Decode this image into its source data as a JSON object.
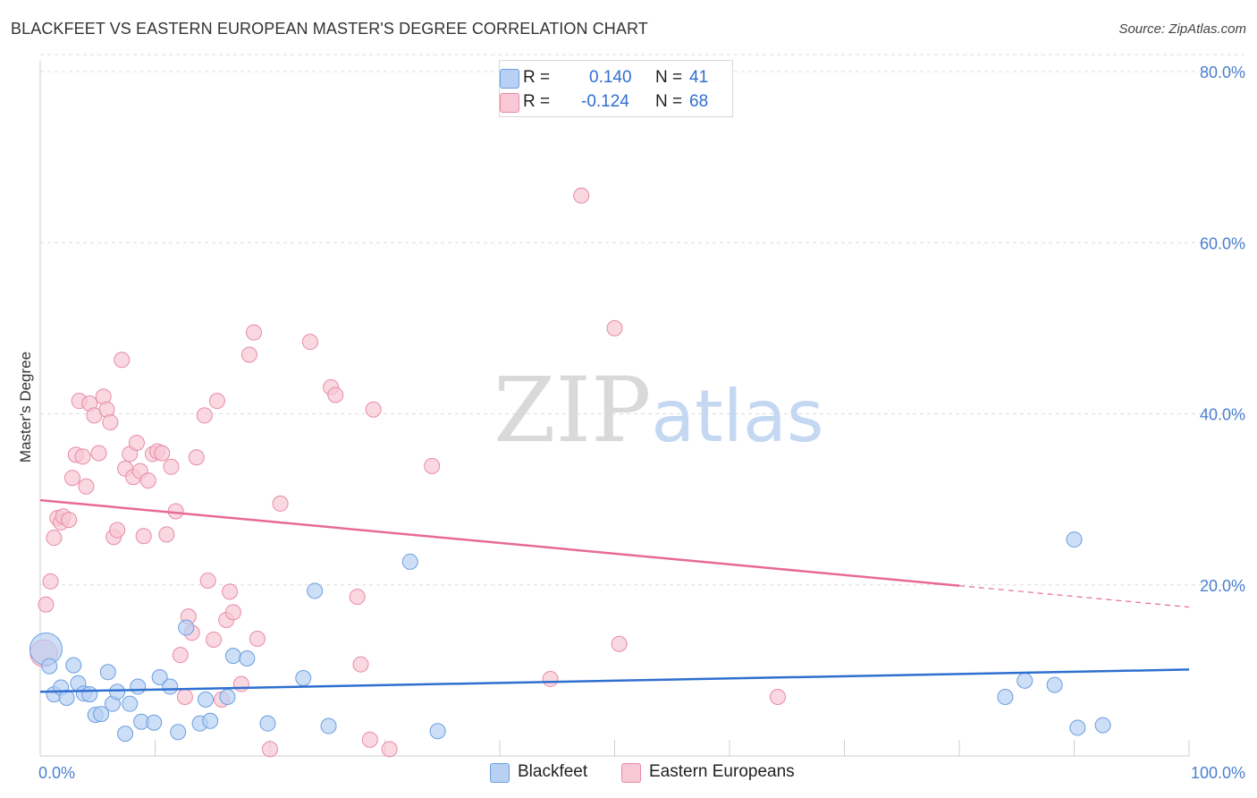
{
  "header": {
    "title": "BLACKFEET VS EASTERN EUROPEAN MASTER'S DEGREE CORRELATION CHART",
    "source": "Source: ZipAtlas.com"
  },
  "legend": {
    "r_label": "R =",
    "n_label": "N =",
    "rows": [
      {
        "name": "Blackfeet",
        "r": "0.140",
        "n": "41",
        "fill": "#b8d0f4",
        "stroke": "#6b9ee0"
      },
      {
        "name": "Eastern Europeans",
        "r": "-0.124",
        "n": "68",
        "fill": "#f8c8d6",
        "stroke": "#e88aa6"
      }
    ]
  },
  "watermark": {
    "zip": "ZIP",
    "atlas": "atlas"
  },
  "colors": {
    "blue_line": "#2f6fd0",
    "pink_line": "#e86a94",
    "tick_text": "#4a7fd0",
    "grid": "#dddddd"
  },
  "chart_data": {
    "type": "scatter",
    "title": "BLACKFEET VS EASTERN EUROPEAN MASTER'S DEGREE CORRELATION CHART",
    "xlabel": "",
    "ylabel": "Master's Degree",
    "xlim": [
      0,
      100
    ],
    "ylim": [
      0,
      80
    ],
    "x_tick_labels": [
      "0.0%",
      "100.0%"
    ],
    "y_ticks": [
      20,
      40,
      60,
      80
    ],
    "y_tick_labels": [
      "20.0%",
      "40.0%",
      "60.0%",
      "80.0%"
    ],
    "grid": true,
    "series": [
      {
        "name": "Blackfeet",
        "color": "#6b9ee0",
        "fill": "#b8d0f4",
        "trend": {
          "x": [
            0,
            100
          ],
          "y": [
            7.5,
            10.1
          ]
        },
        "points": [
          [
            0.5,
            12.5
          ],
          [
            0.8,
            10.5
          ],
          [
            1.2,
            7.2
          ],
          [
            1.8,
            8.0
          ],
          [
            2.3,
            6.8
          ],
          [
            2.9,
            10.6
          ],
          [
            3.3,
            8.5
          ],
          [
            3.8,
            7.3
          ],
          [
            4.3,
            7.2
          ],
          [
            4.8,
            4.8
          ],
          [
            5.3,
            4.9
          ],
          [
            5.9,
            9.8
          ],
          [
            6.3,
            6.1
          ],
          [
            6.7,
            7.5
          ],
          [
            7.4,
            2.6
          ],
          [
            7.8,
            6.1
          ],
          [
            8.5,
            8.1
          ],
          [
            8.8,
            4.0
          ],
          [
            9.9,
            3.9
          ],
          [
            10.4,
            9.2
          ],
          [
            11.3,
            8.1
          ],
          [
            12.0,
            2.8
          ],
          [
            12.7,
            15.0
          ],
          [
            13.9,
            3.8
          ],
          [
            14.4,
            6.6
          ],
          [
            14.8,
            4.1
          ],
          [
            16.3,
            6.9
          ],
          [
            16.8,
            11.7
          ],
          [
            18.0,
            11.4
          ],
          [
            19.8,
            3.8
          ],
          [
            22.9,
            9.1
          ],
          [
            23.9,
            19.3
          ],
          [
            25.1,
            3.5
          ],
          [
            32.2,
            22.7
          ],
          [
            34.6,
            2.9
          ],
          [
            84.0,
            6.9
          ],
          [
            85.7,
            8.8
          ],
          [
            88.3,
            8.3
          ],
          [
            90.0,
            25.3
          ],
          [
            90.3,
            3.3
          ],
          [
            92.5,
            3.6
          ]
        ]
      },
      {
        "name": "Eastern Europeans",
        "color": "#e88aa6",
        "fill": "#f8c8d6",
        "trend": {
          "x": [
            0,
            80
          ],
          "y": [
            29.9,
            19.9
          ],
          "dashed_x": [
            80,
            100
          ],
          "dashed_y": [
            19.9,
            17.4
          ]
        },
        "points": [
          [
            0.3,
            12.0
          ],
          [
            0.5,
            17.7
          ],
          [
            0.9,
            20.4
          ],
          [
            1.2,
            25.5
          ],
          [
            1.5,
            27.8
          ],
          [
            1.8,
            27.3
          ],
          [
            2.0,
            28.0
          ],
          [
            2.5,
            27.6
          ],
          [
            2.8,
            32.5
          ],
          [
            3.1,
            35.2
          ],
          [
            3.4,
            41.5
          ],
          [
            3.7,
            35.0
          ],
          [
            4.0,
            31.5
          ],
          [
            4.3,
            41.2
          ],
          [
            4.7,
            39.8
          ],
          [
            5.1,
            35.4
          ],
          [
            5.5,
            42.0
          ],
          [
            5.8,
            40.5
          ],
          [
            6.1,
            39.0
          ],
          [
            6.4,
            25.6
          ],
          [
            6.7,
            26.4
          ],
          [
            7.1,
            46.3
          ],
          [
            7.4,
            33.6
          ],
          [
            7.8,
            35.3
          ],
          [
            8.1,
            32.6
          ],
          [
            8.4,
            36.6
          ],
          [
            8.7,
            33.3
          ],
          [
            9.0,
            25.7
          ],
          [
            9.4,
            32.2
          ],
          [
            9.8,
            35.3
          ],
          [
            10.2,
            35.6
          ],
          [
            10.6,
            35.4
          ],
          [
            11.0,
            25.9
          ],
          [
            11.4,
            33.8
          ],
          [
            11.8,
            28.6
          ],
          [
            12.2,
            11.8
          ],
          [
            12.6,
            6.9
          ],
          [
            12.9,
            16.3
          ],
          [
            13.2,
            14.4
          ],
          [
            13.6,
            34.9
          ],
          [
            14.3,
            39.8
          ],
          [
            14.6,
            20.5
          ],
          [
            15.1,
            13.6
          ],
          [
            15.4,
            41.5
          ],
          [
            15.8,
            6.6
          ],
          [
            16.2,
            15.9
          ],
          [
            16.5,
            19.2
          ],
          [
            16.8,
            16.8
          ],
          [
            17.5,
            8.4
          ],
          [
            18.2,
            46.9
          ],
          [
            18.6,
            49.5
          ],
          [
            18.9,
            13.7
          ],
          [
            20.0,
            0.8
          ],
          [
            20.9,
            29.5
          ],
          [
            23.5,
            48.4
          ],
          [
            25.3,
            43.1
          ],
          [
            25.7,
            42.2
          ],
          [
            27.6,
            18.6
          ],
          [
            27.9,
            10.7
          ],
          [
            28.7,
            1.9
          ],
          [
            29.0,
            40.5
          ],
          [
            30.4,
            0.8
          ],
          [
            34.1,
            33.9
          ],
          [
            44.4,
            9.0
          ],
          [
            47.1,
            65.5
          ],
          [
            50.0,
            50.0
          ],
          [
            50.4,
            13.1
          ],
          [
            64.2,
            6.9
          ]
        ]
      }
    ]
  }
}
